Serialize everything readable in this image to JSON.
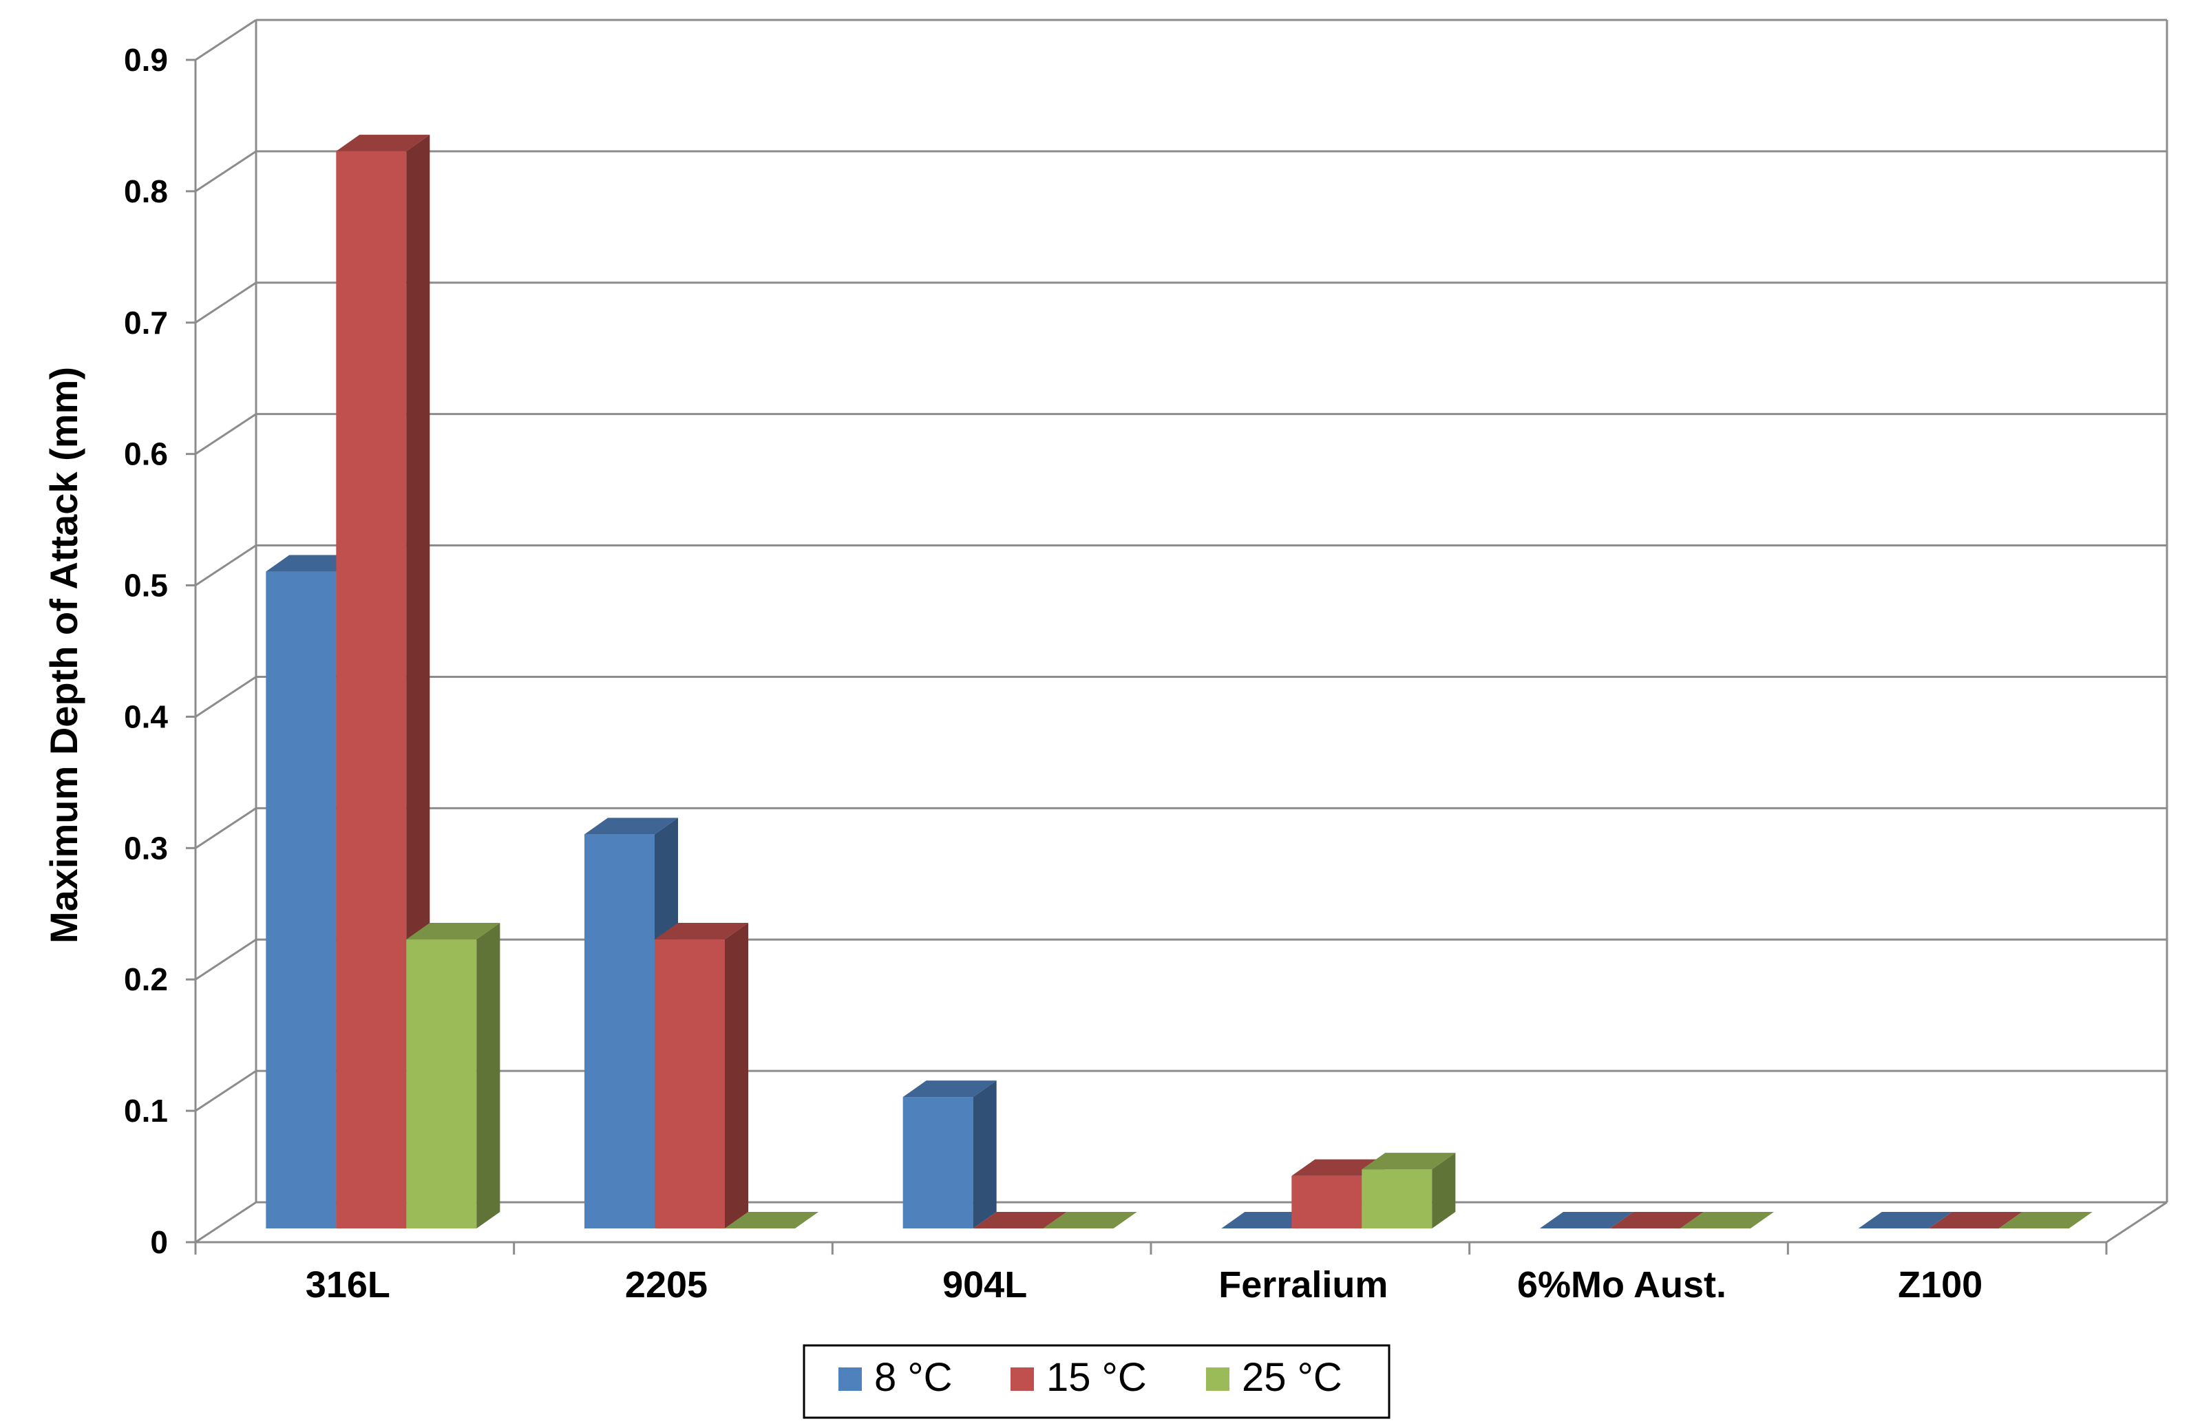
{
  "chart_data": {
    "type": "bar",
    "style": "3d-clustered-column",
    "ylabel": "Maximum Depth of Attack (mm)",
    "xlabel": "",
    "ylim": [
      0,
      0.9
    ],
    "ytick_step": 0.1,
    "yticks": [
      "0",
      "0.1",
      "0.2",
      "0.3",
      "0.4",
      "0.5",
      "0.6",
      "0.7",
      "0.8",
      "0.9"
    ],
    "grid": true,
    "legend_position": "bottom",
    "categories": [
      "316L",
      "2205",
      "904L",
      "Ferralium",
      "6%Mo Aust.",
      "Z100"
    ],
    "series": [
      {
        "name": "8 °C",
        "color": "#4f81bd",
        "values": [
          0.5,
          0.3,
          0.1,
          0,
          0,
          0
        ]
      },
      {
        "name": "15 °C",
        "color": "#c0504d",
        "values": [
          0.82,
          0.22,
          0,
          0.04,
          0,
          0
        ]
      },
      {
        "name": "25 °C",
        "color": "#9bbb59",
        "values": [
          0.22,
          0,
          0,
          0.045,
          0,
          0
        ]
      }
    ]
  }
}
